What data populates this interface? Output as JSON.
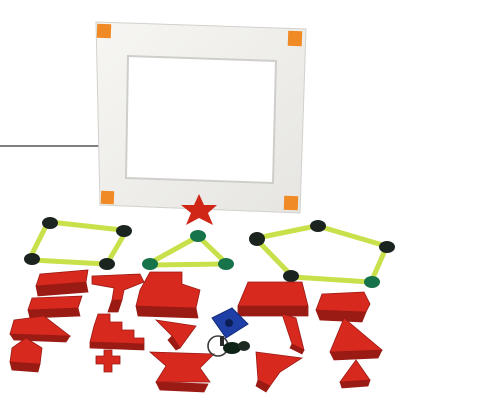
{
  "image": {
    "kind": "product-photo",
    "subject": "foam-shape-manipulatives",
    "colors": {
      "background": "#ffffff",
      "frame": "#f3f2ef",
      "frame_shadow": "#d9d8d4",
      "corner_tab": "#f08a24",
      "shape_red": "#d8291f",
      "shape_red_dark": "#9a1a14",
      "rod_green": "#c8e04a",
      "connector_black": "#1c2420",
      "connector_green": "#16734a",
      "star_red": "#d02618",
      "key_blue": "#1e3fa6",
      "pointer_line": "#333333"
    }
  }
}
